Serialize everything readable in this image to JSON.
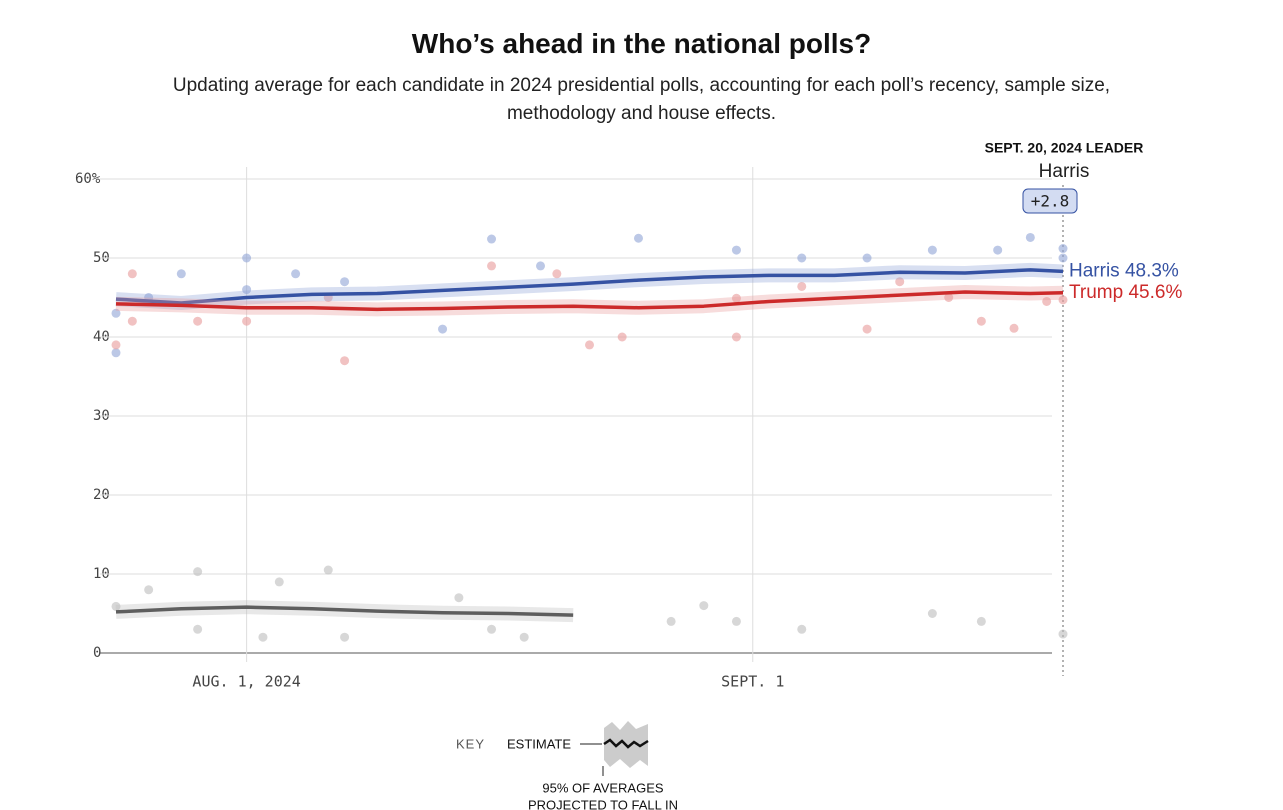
{
  "chart_data": {
    "type": "line",
    "title": "Who’s ahead in the national polls?",
    "subtitle": "Updating average for each candidate in 2024 presidential polls, accounting for each poll’s recency, sample size, methodology and house effects.",
    "x": [
      "2024-07-24",
      "2024-07-28",
      "2024-08-01",
      "2024-08-05",
      "2024-08-09",
      "2024-08-13",
      "2024-08-17",
      "2024-08-21",
      "2024-08-25",
      "2024-08-29",
      "2024-09-02",
      "2024-09-06",
      "2024-09-10",
      "2024-09-14",
      "2024-09-18",
      "2024-09-20"
    ],
    "xlim": [
      "2024-07-24",
      "2024-09-20"
    ],
    "xticks": [
      {
        "value": "2024-08-01",
        "label": "AUG. 1, 2024"
      },
      {
        "value": "2024-09-01",
        "label": "SEPT. 1"
      }
    ],
    "ylim": [
      0,
      60
    ],
    "yticks": [
      0,
      10,
      20,
      30,
      40,
      50,
      {
        "value": 60,
        "label": "60%"
      }
    ],
    "grid": true,
    "series": [
      {
        "name": "Harris",
        "color": "#3552a3",
        "dot_color": "#8fa3d6",
        "values": [
          44.8,
          44.3,
          45.0,
          45.4,
          45.5,
          45.9,
          46.3,
          46.7,
          47.2,
          47.6,
          47.8,
          47.8,
          48.2,
          48.1,
          48.5,
          48.3
        ],
        "value_labels": [
          null,
          null,
          null,
          null,
          null,
          null,
          null,
          null,
          null,
          null,
          null,
          null,
          null,
          null,
          null,
          "48.3%"
        ],
        "polls": {
          "x": [
            "2024-07-24",
            "2024-07-24",
            "2024-07-26",
            "2024-07-28",
            "2024-08-01",
            "2024-08-01",
            "2024-08-04",
            "2024-08-07",
            "2024-08-13",
            "2024-08-16",
            "2024-08-19",
            "2024-08-25",
            "2024-08-31",
            "2024-09-04",
            "2024-09-08",
            "2024-09-12",
            "2024-09-16",
            "2024-09-18",
            "2024-09-20",
            "2024-09-20"
          ],
          "values": [
            38,
            43,
            45,
            48,
            50,
            46,
            48,
            47,
            41,
            52.4,
            49,
            52.5,
            51,
            50,
            50,
            51,
            51,
            52.6,
            51.2,
            50
          ]
        }
      },
      {
        "name": "Trump",
        "color": "#cc2a2a",
        "dot_color": "#e89a9a",
        "values": [
          44.2,
          44.0,
          43.7,
          43.7,
          43.5,
          43.6,
          43.8,
          43.9,
          43.7,
          43.9,
          44.5,
          44.9,
          45.3,
          45.7,
          45.5,
          45.6
        ],
        "value_labels": [
          null,
          null,
          null,
          null,
          null,
          null,
          null,
          null,
          null,
          null,
          null,
          null,
          null,
          null,
          null,
          "45.6%"
        ],
        "polls": {
          "x": [
            "2024-07-24",
            "2024-07-25",
            "2024-07-25",
            "2024-07-29",
            "2024-08-01",
            "2024-08-06",
            "2024-08-07",
            "2024-08-16",
            "2024-08-20",
            "2024-08-22",
            "2024-08-24",
            "2024-08-31",
            "2024-08-31",
            "2024-09-04",
            "2024-09-08",
            "2024-09-10",
            "2024-09-13",
            "2024-09-15",
            "2024-09-17",
            "2024-09-19",
            "2024-09-20"
          ],
          "values": [
            39,
            48,
            42,
            42,
            42,
            45,
            37,
            49,
            48,
            39,
            40,
            44.9,
            40,
            46.4,
            41,
            47,
            45,
            42,
            41.1,
            44.5,
            44.7
          ]
        }
      },
      {
        "color": "#5e5e5e",
        "dot_color": "#bdbdbd",
        "values": [
          5.2,
          5.6,
          5.8,
          5.6,
          5.3,
          5.1,
          5.0,
          4.8,
          null,
          null,
          null,
          null,
          null,
          null,
          null,
          null
        ],
        "polls": {
          "x": [
            "2024-07-24",
            "2024-07-26",
            "2024-07-29",
            "2024-07-29",
            "2024-08-02",
            "2024-08-03",
            "2024-08-06",
            "2024-08-07",
            "2024-08-14",
            "2024-08-16",
            "2024-08-18",
            "2024-08-27",
            "2024-08-29",
            "2024-08-31",
            "2024-09-04",
            "2024-09-12",
            "2024-09-15",
            "2024-09-20"
          ],
          "values": [
            5.9,
            8,
            10.3,
            3,
            2,
            9,
            10.5,
            2,
            7,
            3,
            2,
            4,
            6,
            4,
            3,
            5,
            4,
            2.4
          ]
        }
      }
    ],
    "leader": {
      "heading": "SEPT. 20, 2024 LEADER",
      "name": "Harris",
      "margin": "+2.8"
    },
    "key": {
      "title": "KEY",
      "estimate": "ESTIMATE",
      "band_lines": [
        "95% OF AVERAGES",
        "PROJECTED TO FALL IN"
      ]
    }
  }
}
